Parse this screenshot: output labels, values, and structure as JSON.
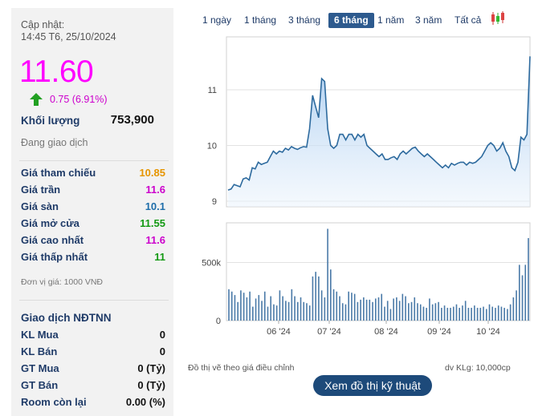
{
  "quote": {
    "updated_label": "Cập nhật:",
    "updated_time": "14:45 T6, 25/10/2024",
    "price": "11.60",
    "change": "0.75 (6.91%)",
    "volume_label": "Khối lượng",
    "volume_value": "753,900",
    "status": "Đang giao dịch"
  },
  "prices": [
    {
      "label": "Giá tham chiếu",
      "value": "10.85",
      "color": "#e69500"
    },
    {
      "label": "Giá trần",
      "value": "11.6",
      "color": "#cc00cc"
    },
    {
      "label": "Giá sàn",
      "value": "10.1",
      "color": "#1f6eaa"
    },
    {
      "label": "Giá mở cửa",
      "value": "11.55",
      "color": "#139913"
    },
    {
      "label": "Giá cao nhất",
      "value": "11.6",
      "color": "#cc00cc"
    },
    {
      "label": "Giá thấp nhất",
      "value": "11",
      "color": "#139913"
    }
  ],
  "unit_note": "Đơn vị giá: 1000 VNĐ",
  "foreign": {
    "title": "Giao dịch NĐTNN",
    "rows": [
      {
        "label": "KL Mua",
        "value": "0"
      },
      {
        "label": "KL Bán",
        "value": "0"
      },
      {
        "label": "GT Mua",
        "value": "0 (Tỷ)"
      },
      {
        "label": "GT Bán",
        "value": "0 (Tỷ)"
      },
      {
        "label": "Room còn lại",
        "value": "0.00 (%)"
      }
    ]
  },
  "tabs": [
    "1 ngày",
    "1 tháng",
    "3 tháng",
    "6 tháng",
    "1 năm",
    "3 năm",
    "Tất cả"
  ],
  "active_tab": "6 tháng",
  "icons": {
    "up_arrow": "up-arrow-icon",
    "candles": "candlestick-icon"
  },
  "chart_data": {
    "type": "line",
    "price_series": [
      9.2,
      9.22,
      9.3,
      9.28,
      9.26,
      9.4,
      9.42,
      9.38,
      9.6,
      9.58,
      9.7,
      9.66,
      9.68,
      9.7,
      9.8,
      9.9,
      9.85,
      9.9,
      9.88,
      9.95,
      9.92,
      9.98,
      9.95,
      9.93,
      9.96,
      9.98,
      9.97,
      10.3,
      10.9,
      10.7,
      10.5,
      11.2,
      11.15,
      10.3,
      10.0,
      9.95,
      10.0,
      10.2,
      10.2,
      10.1,
      10.2,
      10.2,
      10.1,
      10.2,
      10.15,
      10.2,
      10.0,
      9.95,
      9.9,
      9.85,
      9.8,
      9.85,
      9.75,
      9.75,
      9.78,
      9.8,
      9.75,
      9.85,
      9.9,
      9.85,
      9.9,
      9.95,
      9.97,
      9.9,
      9.85,
      9.8,
      9.85,
      9.8,
      9.75,
      9.7,
      9.65,
      9.6,
      9.65,
      9.6,
      9.68,
      9.65,
      9.68,
      9.7,
      9.7,
      9.65,
      9.7,
      9.68,
      9.7,
      9.75,
      9.8,
      9.9,
      10.0,
      10.05,
      10.0,
      9.9,
      9.95,
      10.05,
      9.9,
      9.8,
      9.6,
      9.55,
      9.7,
      10.15,
      10.1,
      10.2,
      11.6
    ],
    "volume_series": [
      270,
      250,
      220,
      160,
      260,
      240,
      200,
      250,
      120,
      190,
      220,
      170,
      250,
      120,
      210,
      140,
      130,
      260,
      210,
      170,
      160,
      270,
      210,
      160,
      200,
      160,
      150,
      130,
      380,
      420,
      380,
      260,
      200,
      790,
      440,
      270,
      250,
      210,
      150,
      140,
      250,
      240,
      230,
      160,
      180,
      200,
      180,
      180,
      160,
      190,
      200,
      230,
      120,
      170,
      100,
      190,
      200,
      170,
      230,
      210,
      150,
      160,
      200,
      150,
      140,
      120,
      110,
      190,
      140,
      150,
      160,
      110,
      130,
      110,
      110,
      120,
      140,
      110,
      130,
      170,
      110,
      110,
      130,
      110,
      110,
      120,
      100,
      140,
      120,
      110,
      130,
      120,
      110,
      100,
      140,
      200,
      260,
      480,
      390,
      480,
      710
    ],
    "x_tick_labels": [
      "06 '24",
      "07 '24",
      "08 '24",
      "09 '24",
      "10 '24"
    ],
    "y_price_ticks": [
      9,
      10,
      11
    ],
    "y_price_range": [
      8.9,
      11.95
    ],
    "y_volume_ticks": [
      "0",
      "500k"
    ],
    "volume_unit": "dv KLg: 10,000cp",
    "price_unit_note": "Đồ thị vẽ theo giá điều chỉnh",
    "line_color": "#2d6a9e",
    "volume_color": "#4a7aa8",
    "grid": true
  },
  "buttons": {
    "technical_chart": "Xem đồ thị kỹ thuật"
  }
}
